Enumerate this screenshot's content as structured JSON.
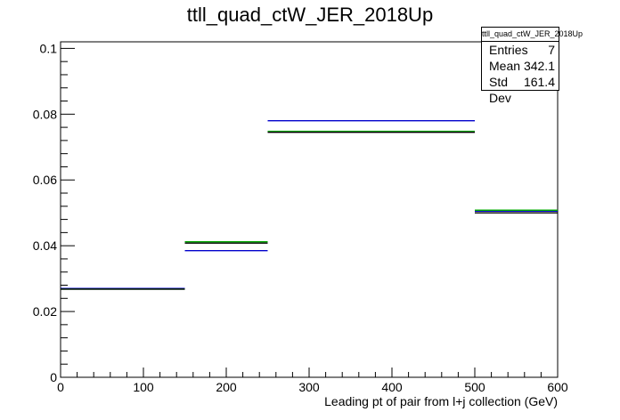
{
  "chart_data": {
    "type": "step",
    "title": "ttll_quad_ctW_JER_2018Up",
    "xlabel": "Leading pt of pair from l+j collection (GeV)",
    "ylabel": "",
    "xlim": [
      0,
      600
    ],
    "ylim": [
      0,
      0.102
    ],
    "x_ticks": [
      "0",
      "100",
      "200",
      "300",
      "400",
      "500",
      "600"
    ],
    "y_ticks": [
      "0",
      "0.02",
      "0.04",
      "0.06",
      "0.08",
      "0.1"
    ],
    "bin_edges": [
      0,
      150,
      250,
      500,
      600
    ],
    "series": [
      {
        "color": "#0000cc",
        "values": [
          0.027,
          0.0385,
          0.078,
          0.0505
        ]
      },
      {
        "color": "#00aa00",
        "values": [
          0.0268,
          0.0412,
          0.0748,
          0.0508
        ]
      },
      {
        "color": "#000000",
        "values": [
          0.0268,
          0.0408,
          0.0745,
          0.05
        ]
      }
    ],
    "grid": false,
    "legend": "none"
  },
  "stats_box": {
    "name": "ttll_quad_ctW_JER_2018Up",
    "entries_label": "Entries",
    "entries_value": "7",
    "mean_label": "Mean",
    "mean_value": "342.1",
    "std_label": "Std Dev",
    "std_value": "161.4"
  }
}
